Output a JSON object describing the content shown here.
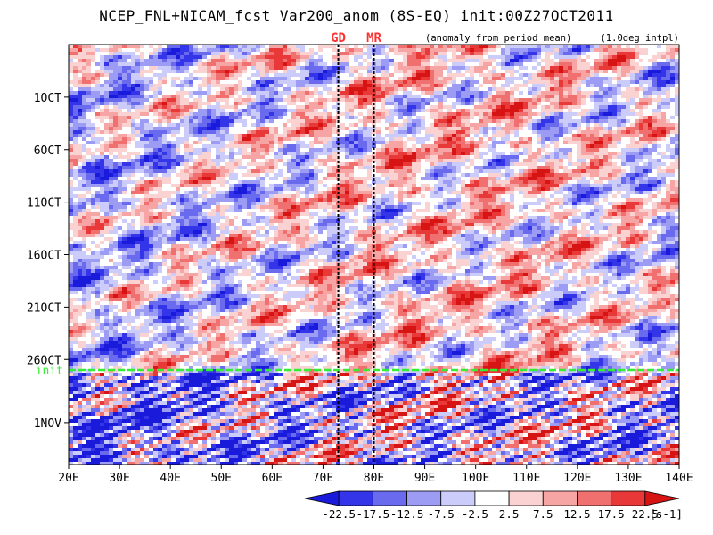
{
  "title": "NCEP_FNL+NICAM_fcst Var200_anom (8S-EQ) init:00Z27OCT2011",
  "subnotes": {
    "anomaly": "(anomaly from period mean)",
    "interp": "(1.0deg intpl)"
  },
  "markers": [
    {
      "label": "GD",
      "lon": 73
    },
    {
      "label": "MR",
      "lon": 80
    }
  ],
  "init_label": "init",
  "colors": {
    "marker": "#ff3030",
    "init_line": "#33ee33",
    "scale": [
      "#1a1adb",
      "#3434e8",
      "#6a6aef",
      "#9c9cf4",
      "#ccccfa",
      "#ffffff",
      "#ffffff",
      "#fad2d2",
      "#f6a4a4",
      "#f07070",
      "#e83838",
      "#d71414"
    ]
  },
  "chart_data": {
    "type": "heatmap",
    "title": "NCEP_FNL+NICAM_fcst Var200_anom (8S-EQ) init:00Z27OCT2011",
    "x_axis": {
      "range": [
        20,
        140
      ],
      "ticks": [
        20,
        30,
        40,
        50,
        60,
        70,
        80,
        90,
        100,
        110,
        120,
        130,
        140
      ],
      "tick_labels": [
        "20E",
        "30E",
        "40E",
        "50E",
        "60E",
        "70E",
        "80E",
        "90E",
        "100E",
        "110E",
        "120E",
        "130E",
        "140E"
      ]
    },
    "y_axis": {
      "range": [
        "2011-09-26",
        "2011-11-05"
      ],
      "inverted": true,
      "ticks": [
        "2011-10-01",
        "2011-10-06",
        "2011-10-11",
        "2011-10-16",
        "2011-10-21",
        "2011-10-26",
        "2011-11-01"
      ],
      "tick_labels": [
        "1OCT",
        "6OCT",
        "11OCT",
        "16OCT",
        "21OCT",
        "26OCT",
        "1NOV"
      ]
    },
    "init_date": "2011-10-27",
    "colorbar": {
      "levels": [
        -22.5,
        -17.5,
        -12.5,
        -7.5,
        -2.5,
        2.5,
        7.5,
        12.5,
        17.5,
        22.5
      ],
      "tick_labels": [
        "-22.5",
        "-17.5",
        "-12.5",
        "-7.5",
        "-2.5",
        "2.5",
        "7.5",
        "12.5",
        "17.5",
        "22.5"
      ],
      "unit": "[s-1]"
    },
    "grid": false
  }
}
